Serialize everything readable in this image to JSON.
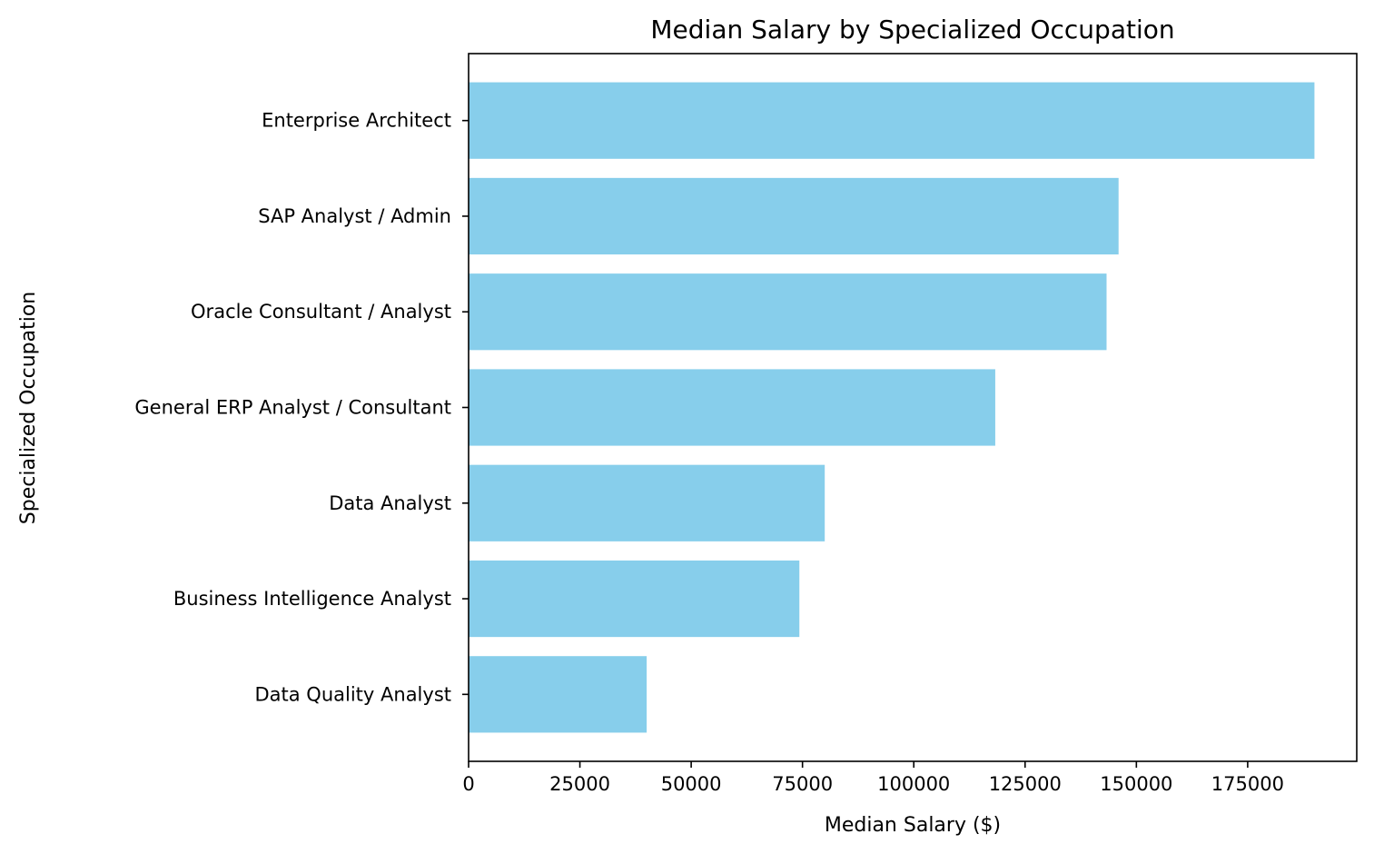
{
  "chart_data": {
    "type": "bar",
    "orientation": "horizontal",
    "title": "Median Salary by Specialized Occupation",
    "xlabel": "Median Salary ($)",
    "ylabel": "Specialized Occupation",
    "categories": [
      "Enterprise Architect",
      "SAP Analyst / Admin",
      "Oracle Consultant / Analyst",
      "General ERP Analyst / Consultant",
      "Data Analyst",
      "Business Intelligence Analyst",
      "Data Quality Analyst"
    ],
    "values": [
      190000,
      146000,
      143300,
      118300,
      80000,
      74300,
      40000
    ],
    "xlim": [
      0,
      199500
    ],
    "xticks": [
      0,
      25000,
      50000,
      75000,
      100000,
      125000,
      150000,
      175000
    ],
    "bar_color": "#87CEEB",
    "grid": false,
    "legend": false
  }
}
